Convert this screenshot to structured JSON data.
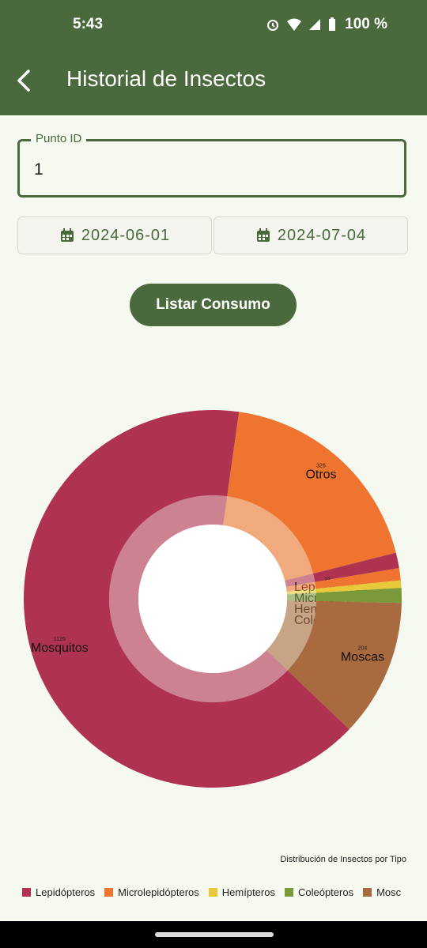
{
  "status_bar": {
    "time": "5:43",
    "battery": "100 %"
  },
  "app_bar": {
    "title": "Historial de Insectos"
  },
  "punto_id": {
    "label": "Punto ID",
    "value": "1"
  },
  "dates": {
    "start": "2024-06-01",
    "end": "2024-07-04"
  },
  "actions": {
    "list_label": "Listar Consumo"
  },
  "chart_data": {
    "type": "pie",
    "title": "Distribución de Insectos por Tipo",
    "style": "donut",
    "slices": [
      {
        "label": "Mosquitos",
        "value": 1126,
        "color": "#B03251",
        "value_text": "1126"
      },
      {
        "label": "Otros",
        "value": 326,
        "color": "#EE7430",
        "value_text": "326"
      },
      {
        "label": "Lepidópteros",
        "value": 23,
        "color": "#B03251",
        "value_text": "23"
      },
      {
        "label": "Microlepidópteros",
        "value": 18,
        "color": "#EE7430",
        "value_text": "18"
      },
      {
        "label": "Hemípteros",
        "value": 11,
        "color": "#E8C93A",
        "value_text": "11"
      },
      {
        "label": "Coleópteros",
        "value": 22,
        "color": "#7A9A3A",
        "value_text": "22"
      },
      {
        "label": "Moscas",
        "value": 204,
        "color": "#A86A3E",
        "value_text": "204"
      }
    ],
    "legend": [
      {
        "label": "Lepidópteros",
        "color": "#B03251"
      },
      {
        "label": "Microlepidópteros",
        "color": "#EE7430"
      },
      {
        "label": "Hemípteros",
        "color": "#E8C93A"
      },
      {
        "label": "Coleópteros",
        "color": "#7A9A3A"
      },
      {
        "label": "Mosc",
        "color": "#A86A3E"
      }
    ]
  }
}
